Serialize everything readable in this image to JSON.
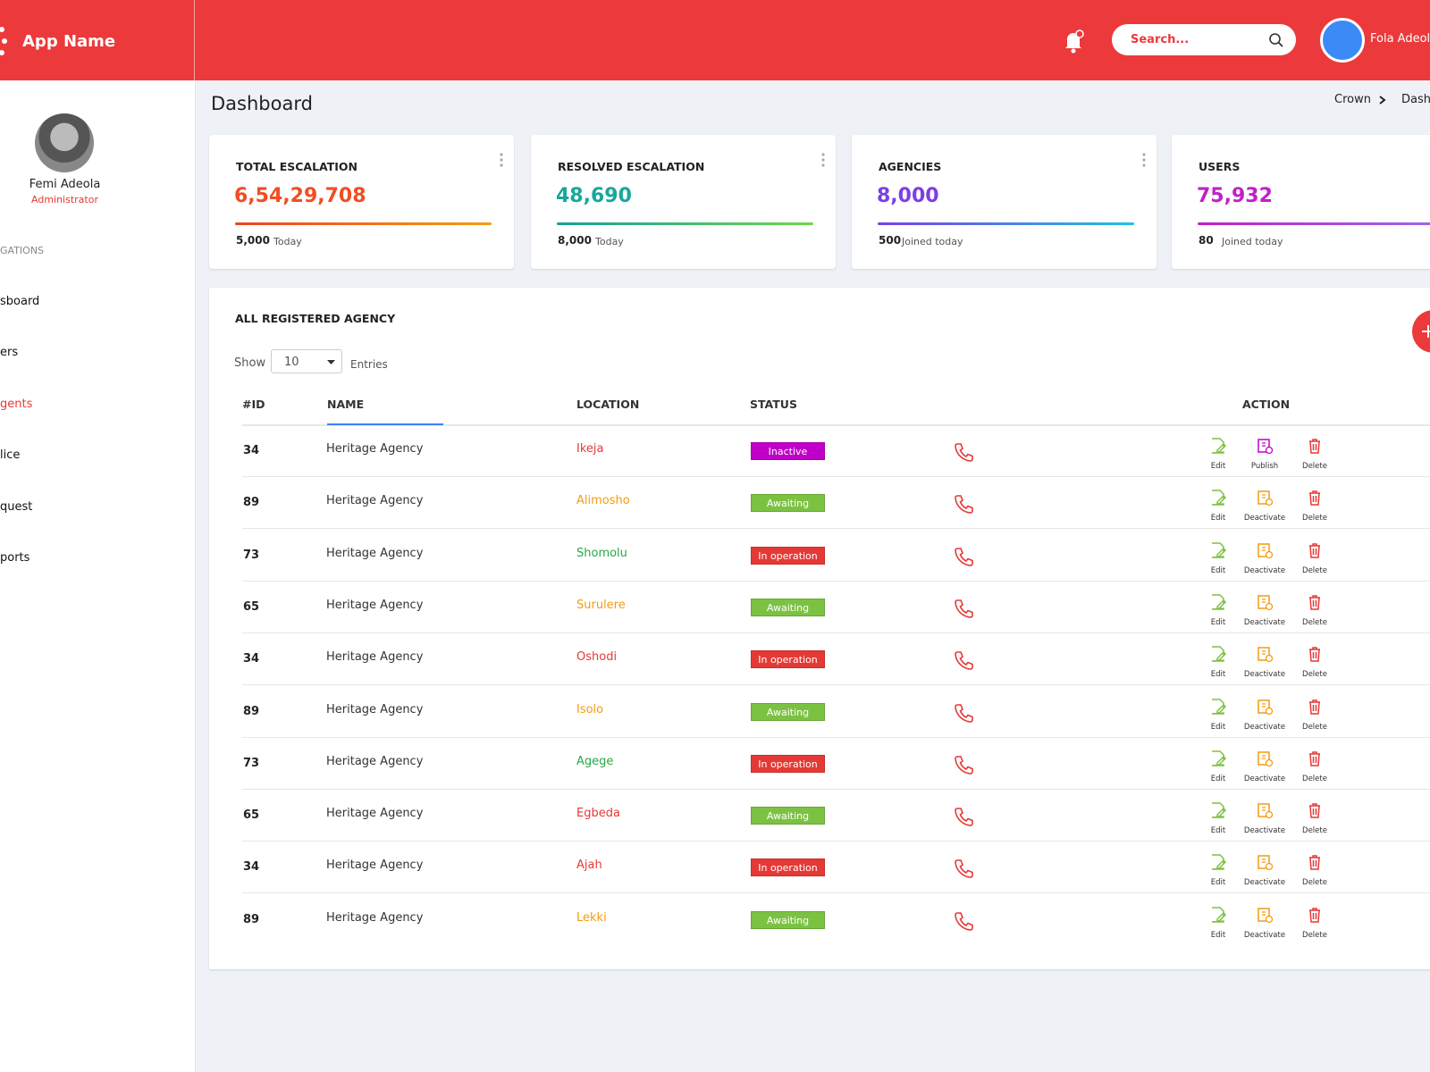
{
  "header": {
    "app_name": "App Name",
    "search_placeholder": "Search...",
    "user_name": "Fola Adeola"
  },
  "sidebar": {
    "profile": {
      "name": "Femi Adeola",
      "role": "Administrator"
    },
    "section": "GATIONS",
    "items": [
      "sboard",
      "ers",
      "gents",
      "lice",
      "quest",
      "ports"
    ],
    "active": 2
  },
  "page": {
    "title": "Dashboard",
    "breadcrumb": [
      "Crown",
      "Dash"
    ]
  },
  "cards": [
    {
      "title": "TOTAL ESCALATION",
      "value": "6,54,29,708",
      "sub_value": "5,000",
      "sub_label": "Today",
      "color": "#f04e23",
      "gradient": [
        "#f0421f",
        "#f39c12"
      ]
    },
    {
      "title": "RESOLVED ESCALATION",
      "value": "48,690",
      "sub_value": "8,000",
      "sub_label": "Today",
      "color": "#16a89a",
      "gradient": [
        "#16a09a",
        "#6ad84a"
      ]
    },
    {
      "title": "AGENCIES",
      "value": "8,000",
      "sub_value": "500",
      "sub_label": "Joined today",
      "color": "#7b3fe4",
      "gradient": [
        "#7b3fe4",
        "#1ec0e8"
      ]
    },
    {
      "title": "USERS",
      "value": "75,932",
      "sub_value": "80",
      "sub_label": "Joined today",
      "color": "#c21fc8",
      "gradient": [
        "#c21fc8",
        "#9a6bf0"
      ]
    }
  ],
  "table": {
    "title": "ALL REGISTERED AGENCY",
    "show_label": "Show",
    "page_size": "10",
    "entries_label": "Entries",
    "columns": [
      "#ID",
      "NAME",
      "LOCATION",
      "STATUS",
      "ACTION"
    ],
    "rows": [
      {
        "id": 34,
        "name": "Heritage Agency",
        "location": "Ikeja",
        "location_color": "#e53935",
        "status": "Inactive",
        "status_color": "#c000c8",
        "actions": [
          {
            "label": "Edit",
            "color": "#7cc242"
          },
          {
            "label": "Publish",
            "color": "#c000c8"
          },
          {
            "label": "Delete",
            "color": "#e53935"
          }
        ]
      },
      {
        "id": 89,
        "name": "Heritage Agency",
        "location": "Alimosho",
        "location_color": "#f39c12",
        "status": "Awaiting",
        "status_color": "#7cc242",
        "actions": [
          {
            "label": "Edit",
            "color": "#7cc242"
          },
          {
            "label": "Deactivate",
            "color": "#f39c12"
          },
          {
            "label": "Delete",
            "color": "#e53935"
          }
        ]
      },
      {
        "id": 73,
        "name": "Heritage Agency",
        "location": "Shomolu",
        "location_color": "#27a844",
        "status": "In operation",
        "status_color": "#e53935",
        "actions": [
          {
            "label": "Edit",
            "color": "#7cc242"
          },
          {
            "label": "Deactivate",
            "color": "#f39c12"
          },
          {
            "label": "Delete",
            "color": "#e53935"
          }
        ]
      },
      {
        "id": 65,
        "name": "Heritage Agency",
        "location": "Surulere",
        "location_color": "#f39c12",
        "status": "Awaiting",
        "status_color": "#7cc242",
        "actions": [
          {
            "label": "Edit",
            "color": "#7cc242"
          },
          {
            "label": "Deactivate",
            "color": "#f39c12"
          },
          {
            "label": "Delete",
            "color": "#e53935"
          }
        ]
      },
      {
        "id": 34,
        "name": "Heritage Agency",
        "location": "Oshodi",
        "location_color": "#e53935",
        "status": "In operation",
        "status_color": "#e53935",
        "actions": [
          {
            "label": "Edit",
            "color": "#7cc242"
          },
          {
            "label": "Deactivate",
            "color": "#f39c12"
          },
          {
            "label": "Delete",
            "color": "#e53935"
          }
        ]
      },
      {
        "id": 89,
        "name": "Heritage Agency",
        "location": "Isolo",
        "location_color": "#f39c12",
        "status": "Awaiting",
        "status_color": "#7cc242",
        "actions": [
          {
            "label": "Edit",
            "color": "#7cc242"
          },
          {
            "label": "Deactivate",
            "color": "#f39c12"
          },
          {
            "label": "Delete",
            "color": "#e53935"
          }
        ]
      },
      {
        "id": 73,
        "name": "Heritage Agency",
        "location": "Agege",
        "location_color": "#27a844",
        "status": "In operation",
        "status_color": "#e53935",
        "actions": [
          {
            "label": "Edit",
            "color": "#7cc242"
          },
          {
            "label": "Deactivate",
            "color": "#f39c12"
          },
          {
            "label": "Delete",
            "color": "#e53935"
          }
        ]
      },
      {
        "id": 65,
        "name": "Heritage Agency",
        "location": "Egbeda",
        "location_color": "#e53935",
        "status": "Awaiting",
        "status_color": "#7cc242",
        "actions": [
          {
            "label": "Edit",
            "color": "#7cc242"
          },
          {
            "label": "Deactivate",
            "color": "#f39c12"
          },
          {
            "label": "Delete",
            "color": "#e53935"
          }
        ]
      },
      {
        "id": 34,
        "name": "Heritage Agency",
        "location": "Ajah",
        "location_color": "#e53935",
        "status": "In operation",
        "status_color": "#e53935",
        "actions": [
          {
            "label": "Edit",
            "color": "#7cc242"
          },
          {
            "label": "Deactivate",
            "color": "#f39c12"
          },
          {
            "label": "Delete",
            "color": "#e53935"
          }
        ]
      },
      {
        "id": 89,
        "name": "Heritage Agency",
        "location": "Lekki",
        "location_color": "#f39c12",
        "status": "Awaiting",
        "status_color": "#7cc242",
        "actions": [
          {
            "label": "Edit",
            "color": "#7cc242"
          },
          {
            "label": "Deactivate",
            "color": "#f39c12"
          },
          {
            "label": "Delete",
            "color": "#e53935"
          }
        ]
      }
    ]
  }
}
